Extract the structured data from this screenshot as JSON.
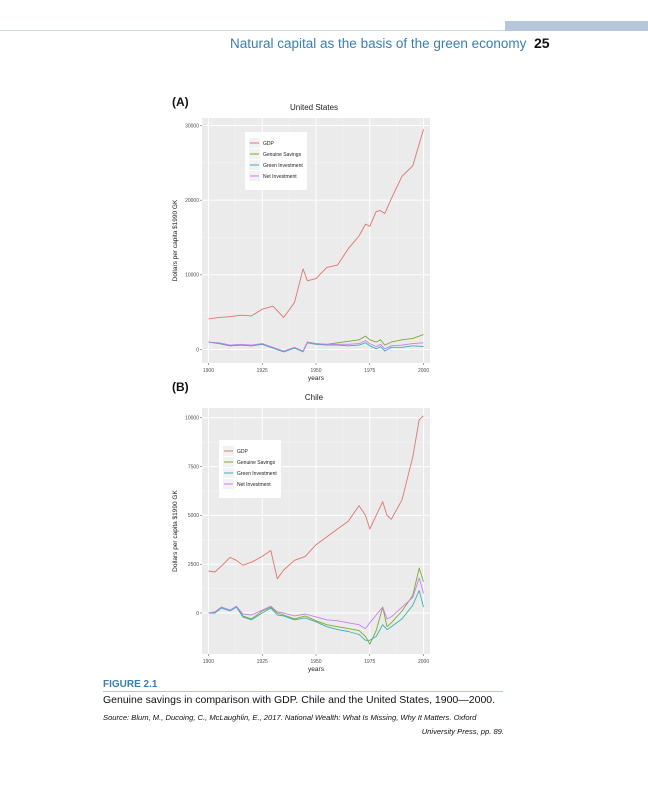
{
  "header": {
    "running_head": "Natural capital as the basis of the green economy",
    "page_number": "25",
    "accent_color": "#3a7fb0"
  },
  "figure": {
    "label": "FIGURE 2.1",
    "caption": "Genuine savings in comparison with GDP. Chile and the United States, 1900—2000.",
    "source_line1": "Source: Blum, M., Ducoing, C., McLaughlin, E., 2017. National Wealth: What Is Missing, Why It Matters. Oxford",
    "source_line2": "University Press, pp. 89."
  },
  "chart_data": [
    {
      "panel": "(A)",
      "type": "line",
      "title": "United States",
      "xlabel": "years",
      "ylabel": "Dollars per capita $1990 GK",
      "xlim": [
        1897,
        2003
      ],
      "ylim": [
        -1800,
        31000
      ],
      "xticks": [
        1900,
        1925,
        1950,
        1975,
        2000
      ],
      "xtick_labels": [
        "1900",
        "1925",
        "1950",
        "1975",
        "2000"
      ],
      "yticks": [
        0,
        10000,
        20000,
        30000
      ],
      "ytick_labels": [
        "0",
        "10000",
        "20000",
        "30000"
      ],
      "grid": true,
      "legend_position": "top-left",
      "x": [
        1900,
        1905,
        1910,
        1915,
        1920,
        1925,
        1930,
        1935,
        1940,
        1944,
        1946,
        1950,
        1955,
        1960,
        1965,
        1970,
        1973,
        1975,
        1978,
        1980,
        1982,
        1985,
        1990,
        1995,
        2000
      ],
      "series": [
        {
          "name": "GDP",
          "color": "#e0756b",
          "values": [
            4100,
            4300,
            4400,
            4600,
            4500,
            5400,
            5800,
            4300,
            6300,
            10800,
            9200,
            9500,
            11000,
            11300,
            13500,
            15200,
            16800,
            16500,
            18500,
            18600,
            18200,
            20200,
            23200,
            24600,
            29500
          ]
        },
        {
          "name": "Genuine Savings",
          "color": "#7caa2d",
          "values": [
            1000,
            800,
            500,
            600,
            500,
            700,
            200,
            -300,
            200,
            -200,
            1000,
            800,
            700,
            900,
            1100,
            1300,
            1800,
            1300,
            1000,
            1300,
            600,
            1000,
            1300,
            1500,
            2000
          ]
        },
        {
          "name": "Green Investment",
          "color": "#3ab0b4",
          "values": [
            1000,
            800,
            500,
            600,
            500,
            700,
            200,
            -300,
            200,
            -300,
            900,
            700,
            600,
            600,
            500,
            600,
            900,
            500,
            100,
            400,
            -200,
            300,
            300,
            500,
            400
          ]
        },
        {
          "name": "Net Investment",
          "color": "#c97ef2",
          "values": [
            1000,
            900,
            600,
            700,
            600,
            800,
            300,
            -200,
            300,
            -200,
            1000,
            800,
            700,
            700,
            700,
            800,
            1200,
            800,
            400,
            700,
            100,
            500,
            600,
            800,
            900
          ]
        }
      ]
    },
    {
      "panel": "(B)",
      "type": "line",
      "title": "Chile",
      "xlabel": "years",
      "ylabel": "Dollars per capita $1990 GK",
      "xlim": [
        1897,
        2003
      ],
      "ylim": [
        -2100,
        10500
      ],
      "xticks": [
        1900,
        1925,
        1950,
        1975,
        2000
      ],
      "xtick_labels": [
        "1900",
        "1925",
        "1950",
        "1975",
        "2000"
      ],
      "yticks": [
        0,
        2500,
        5000,
        7500,
        10000
      ],
      "ytick_labels": [
        "0",
        "2500",
        "5000",
        "7500",
        "10000"
      ],
      "grid": true,
      "legend_position": "top-left",
      "x": [
        1900,
        1903,
        1906,
        1910,
        1913,
        1916,
        1920,
        1925,
        1929,
        1932,
        1935,
        1940,
        1945,
        1950,
        1955,
        1960,
        1965,
        1970,
        1973,
        1975,
        1978,
        1981,
        1983,
        1985,
        1990,
        1995,
        1998,
        2000
      ],
      "series": [
        {
          "name": "GDP",
          "color": "#e0756b",
          "values": [
            2150,
            2100,
            2400,
            2850,
            2700,
            2450,
            2600,
            2900,
            3200,
            1750,
            2200,
            2700,
            2900,
            3500,
            3900,
            4300,
            4700,
            5500,
            5000,
            4300,
            5000,
            5700,
            5000,
            4800,
            5800,
            8000,
            9900,
            10100
          ]
        },
        {
          "name": "Genuine Savings",
          "color": "#7caa2d",
          "values": [
            0,
            50,
            300,
            150,
            350,
            -150,
            -300,
            100,
            300,
            0,
            -100,
            -300,
            -150,
            -400,
            -600,
            -700,
            -800,
            -900,
            -1200,
            -1600,
            -900,
            300,
            -700,
            -500,
            100,
            900,
            2300,
            1600
          ]
        },
        {
          "name": "Green Investment",
          "color": "#3ab0b4",
          "values": [
            0,
            0,
            250,
            100,
            300,
            -200,
            -350,
            0,
            250,
            -100,
            -150,
            -350,
            -250,
            -450,
            -700,
            -850,
            -950,
            -1100,
            -1400,
            -1400,
            -1200,
            -600,
            -850,
            -700,
            -300,
            400,
            1150,
            300
          ]
        },
        {
          "name": "Net Investment",
          "color": "#c97ef2",
          "values": [
            0,
            50,
            300,
            150,
            350,
            -50,
            -100,
            150,
            350,
            50,
            0,
            -150,
            -50,
            -200,
            -350,
            -400,
            -500,
            -600,
            -800,
            -500,
            -100,
            300,
            -300,
            -200,
            300,
            800,
            1800,
            1000
          ]
        }
      ]
    }
  ]
}
